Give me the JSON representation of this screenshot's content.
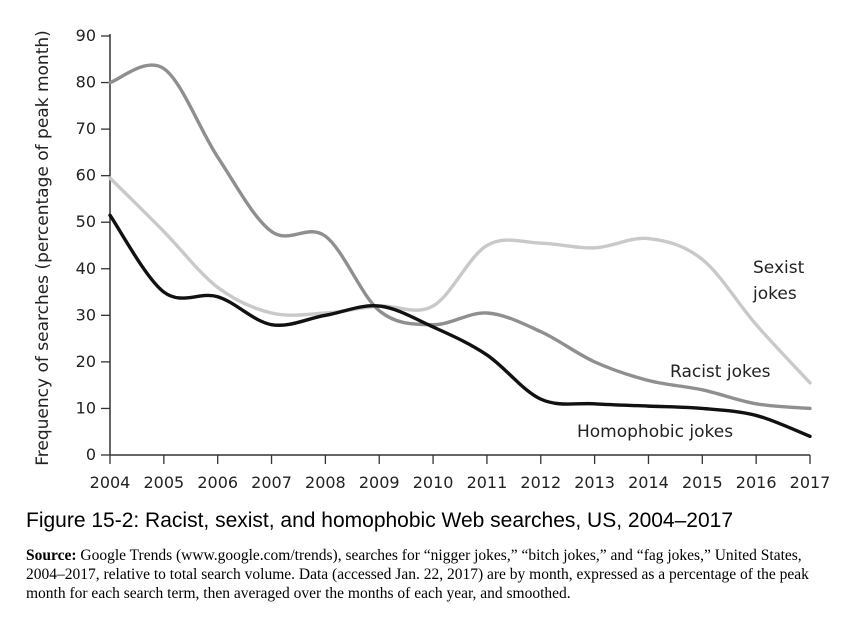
{
  "chart_data": {
    "type": "line",
    "title": "",
    "xlabel": "",
    "ylabel": "Frequency of searches (percentage of peak month)",
    "x": [
      2004,
      2005,
      2006,
      2007,
      2008,
      2009,
      2010,
      2011,
      2012,
      2013,
      2014,
      2015,
      2016,
      2017
    ],
    "xlim": [
      2004,
      2017
    ],
    "ylim": [
      0,
      90
    ],
    "yticks": [
      0,
      10,
      20,
      30,
      40,
      50,
      60,
      70,
      80,
      90
    ],
    "grid": false,
    "legend": "inline-labels",
    "series": [
      {
        "name": "Sexist jokes",
        "color": "#c9c9c9",
        "values": [
          59.5,
          48,
          36,
          30.5,
          30.5,
          32,
          32,
          45,
          45.5,
          44.5,
          46.5,
          42,
          28,
          15.5
        ]
      },
      {
        "name": "Racist jokes",
        "color": "#8f8f8f",
        "values": [
          80,
          83,
          64,
          48,
          47,
          31,
          28,
          30.5,
          26.5,
          20,
          16,
          14,
          11,
          10
        ]
      },
      {
        "name": "Homophobic jokes",
        "color": "#111111",
        "values": [
          51.5,
          35,
          34,
          28,
          30,
          32,
          27.5,
          21.5,
          12,
          11,
          10.5,
          10,
          8.5,
          4
        ]
      }
    ]
  },
  "caption": "Figure 15-2: Racist, sexist, and homophobic Web searches, US, 2004–2017",
  "source": {
    "label": "Source:",
    "text": " Google Trends (www.google.com/trends), searches for “nigger jokes,” “bitch jokes,” and “fag jokes,” United States, 2004–2017, relative to total search volume. Data (accessed Jan. 22, 2017) are by month, expressed as a percentage of the peak month for each search term, then averaged over the months of each year, and smoothed."
  }
}
